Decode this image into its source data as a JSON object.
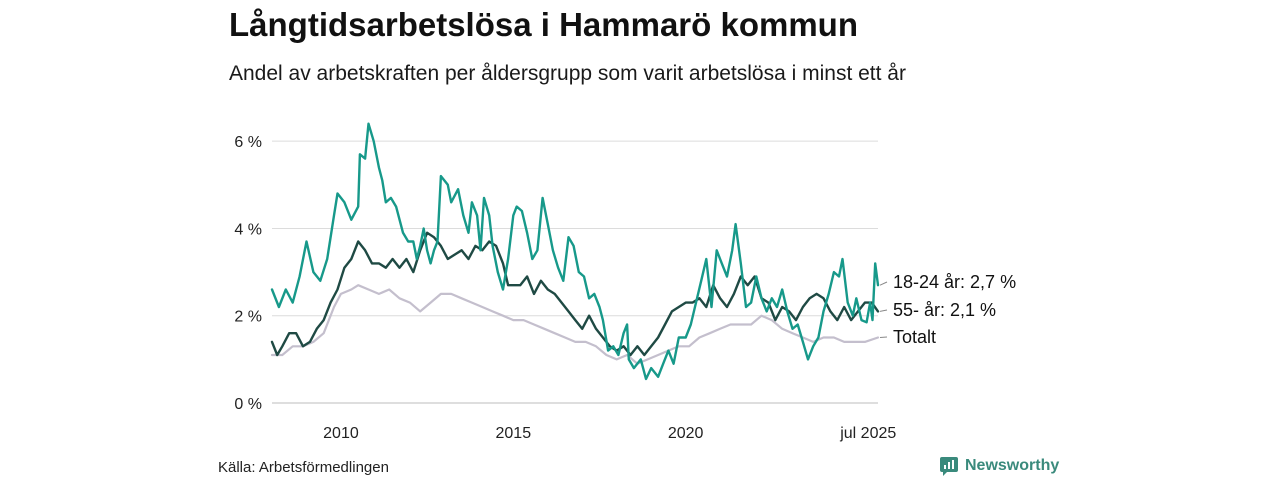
{
  "header": {
    "title": "Långtidsarbetslösa i Hammarö kommun",
    "subtitle": "Andel av arbetskraften per åldersgrupp som varit arbetslösa i minst ett år"
  },
  "footer": {
    "source": "Källa: Arbetsförmedlingen",
    "brand": "Newsworthy"
  },
  "colors": {
    "youth": "#17998a",
    "senior": "#1f4a44",
    "total": "#c4bfcd",
    "grid": "#dcdcdc"
  },
  "chart_data": {
    "type": "line",
    "title": "Långtidsarbetslösa i Hammarö kommun",
    "subtitle": "Andel av arbetskraften per åldersgrupp som varit arbetslösa i minst ett år",
    "xlim": [
      2008.0,
      2025.58
    ],
    "ylim": [
      0,
      6.6
    ],
    "y_ticks": [
      0,
      2,
      4,
      6
    ],
    "y_tick_labels": [
      "0 %",
      "2 %",
      "4 %",
      "6 %"
    ],
    "x_ticks": [
      2010,
      2015,
      2020,
      2025.5
    ],
    "x_tick_labels": [
      "2010",
      "2015",
      "2020",
      "jul 2025"
    ],
    "grid": "horizontal",
    "series": [
      {
        "key": "youth",
        "name": "18-24 år",
        "label": "18-24 år: 2,7 %",
        "points": [
          [
            2008.0,
            2.6
          ],
          [
            2008.2,
            2.2
          ],
          [
            2008.4,
            2.6
          ],
          [
            2008.6,
            2.3
          ],
          [
            2008.8,
            2.9
          ],
          [
            2009.0,
            3.7
          ],
          [
            2009.2,
            3.0
          ],
          [
            2009.4,
            2.8
          ],
          [
            2009.6,
            3.3
          ],
          [
            2009.8,
            4.3
          ],
          [
            2009.9,
            4.8
          ],
          [
            2010.1,
            4.6
          ],
          [
            2010.3,
            4.2
          ],
          [
            2010.5,
            4.5
          ],
          [
            2010.55,
            5.7
          ],
          [
            2010.7,
            5.6
          ],
          [
            2010.8,
            6.4
          ],
          [
            2010.95,
            6.0
          ],
          [
            2011.1,
            5.4
          ],
          [
            2011.2,
            5.1
          ],
          [
            2011.3,
            4.6
          ],
          [
            2011.45,
            4.7
          ],
          [
            2011.6,
            4.5
          ],
          [
            2011.8,
            3.9
          ],
          [
            2011.95,
            3.7
          ],
          [
            2012.1,
            3.7
          ],
          [
            2012.2,
            3.3
          ],
          [
            2012.3,
            3.6
          ],
          [
            2012.4,
            4.0
          ],
          [
            2012.5,
            3.5
          ],
          [
            2012.6,
            3.2
          ],
          [
            2012.7,
            3.5
          ],
          [
            2012.8,
            3.7
          ],
          [
            2012.9,
            5.2
          ],
          [
            2013.1,
            5.0
          ],
          [
            2013.2,
            4.6
          ],
          [
            2013.4,
            4.9
          ],
          [
            2013.55,
            4.3
          ],
          [
            2013.7,
            3.9
          ],
          [
            2013.8,
            4.6
          ],
          [
            2013.95,
            4.3
          ],
          [
            2014.05,
            3.5
          ],
          [
            2014.15,
            4.7
          ],
          [
            2014.3,
            4.3
          ],
          [
            2014.4,
            3.6
          ],
          [
            2014.55,
            3.0
          ],
          [
            2014.7,
            2.6
          ],
          [
            2014.85,
            3.3
          ],
          [
            2015.0,
            4.3
          ],
          [
            2015.1,
            4.5
          ],
          [
            2015.25,
            4.4
          ],
          [
            2015.4,
            3.9
          ],
          [
            2015.55,
            3.3
          ],
          [
            2015.7,
            3.5
          ],
          [
            2015.85,
            4.7
          ],
          [
            2016.0,
            4.1
          ],
          [
            2016.15,
            3.5
          ],
          [
            2016.3,
            3.1
          ],
          [
            2016.45,
            2.8
          ],
          [
            2016.6,
            3.8
          ],
          [
            2016.75,
            3.6
          ],
          [
            2016.9,
            3.0
          ],
          [
            2017.05,
            2.9
          ],
          [
            2017.2,
            2.4
          ],
          [
            2017.35,
            2.5
          ],
          [
            2017.5,
            2.2
          ],
          [
            2017.6,
            1.9
          ],
          [
            2017.75,
            1.2
          ],
          [
            2017.9,
            1.3
          ],
          [
            2018.05,
            1.1
          ],
          [
            2018.2,
            1.6
          ],
          [
            2018.3,
            1.8
          ],
          [
            2018.35,
            1.0
          ],
          [
            2018.5,
            0.8
          ],
          [
            2018.7,
            1.0
          ],
          [
            2018.85,
            0.55
          ],
          [
            2019.0,
            0.8
          ],
          [
            2019.2,
            0.6
          ],
          [
            2019.35,
            0.9
          ],
          [
            2019.5,
            1.2
          ],
          [
            2019.65,
            0.9
          ],
          [
            2019.8,
            1.5
          ],
          [
            2020.0,
            1.5
          ],
          [
            2020.15,
            1.8
          ],
          [
            2020.3,
            2.3
          ],
          [
            2020.45,
            2.8
          ],
          [
            2020.6,
            3.3
          ],
          [
            2020.75,
            2.2
          ],
          [
            2020.9,
            3.5
          ],
          [
            2021.05,
            3.2
          ],
          [
            2021.2,
            2.9
          ],
          [
            2021.35,
            3.5
          ],
          [
            2021.45,
            4.1
          ],
          [
            2021.6,
            3.2
          ],
          [
            2021.75,
            2.2
          ],
          [
            2021.9,
            2.3
          ],
          [
            2022.05,
            2.9
          ],
          [
            2022.2,
            2.4
          ],
          [
            2022.35,
            2.1
          ],
          [
            2022.5,
            2.4
          ],
          [
            2022.65,
            2.2
          ],
          [
            2022.8,
            2.6
          ],
          [
            2022.95,
            2.1
          ],
          [
            2023.1,
            1.7
          ],
          [
            2023.25,
            1.8
          ],
          [
            2023.4,
            1.4
          ],
          [
            2023.55,
            1.0
          ],
          [
            2023.7,
            1.3
          ],
          [
            2023.85,
            1.5
          ],
          [
            2024.0,
            2.1
          ],
          [
            2024.15,
            2.5
          ],
          [
            2024.3,
            3.0
          ],
          [
            2024.45,
            2.9
          ],
          [
            2024.55,
            3.3
          ],
          [
            2024.7,
            2.3
          ],
          [
            2024.85,
            2.0
          ],
          [
            2024.95,
            2.4
          ],
          [
            2025.1,
            1.9
          ],
          [
            2025.25,
            1.85
          ],
          [
            2025.35,
            2.3
          ],
          [
            2025.42,
            1.9
          ],
          [
            2025.5,
            3.2
          ],
          [
            2025.58,
            2.7
          ]
        ]
      },
      {
        "key": "senior",
        "name": "55- år",
        "label": "55- år: 2,1 %",
        "points": [
          [
            2008.0,
            1.4
          ],
          [
            2008.15,
            1.1
          ],
          [
            2008.3,
            1.3
          ],
          [
            2008.5,
            1.6
          ],
          [
            2008.7,
            1.6
          ],
          [
            2008.9,
            1.3
          ],
          [
            2009.1,
            1.4
          ],
          [
            2009.3,
            1.7
          ],
          [
            2009.5,
            1.9
          ],
          [
            2009.7,
            2.3
          ],
          [
            2009.9,
            2.6
          ],
          [
            2010.1,
            3.1
          ],
          [
            2010.3,
            3.3
          ],
          [
            2010.5,
            3.7
          ],
          [
            2010.7,
            3.5
          ],
          [
            2010.9,
            3.2
          ],
          [
            2011.1,
            3.2
          ],
          [
            2011.3,
            3.1
          ],
          [
            2011.5,
            3.3
          ],
          [
            2011.7,
            3.1
          ],
          [
            2011.9,
            3.3
          ],
          [
            2012.1,
            3.0
          ],
          [
            2012.3,
            3.5
          ],
          [
            2012.5,
            3.9
          ],
          [
            2012.7,
            3.8
          ],
          [
            2012.9,
            3.6
          ],
          [
            2013.1,
            3.3
          ],
          [
            2013.3,
            3.4
          ],
          [
            2013.5,
            3.5
          ],
          [
            2013.7,
            3.3
          ],
          [
            2013.9,
            3.6
          ],
          [
            2014.1,
            3.5
          ],
          [
            2014.3,
            3.7
          ],
          [
            2014.5,
            3.6
          ],
          [
            2014.7,
            3.2
          ],
          [
            2014.85,
            2.7
          ],
          [
            2015.0,
            2.7
          ],
          [
            2015.2,
            2.7
          ],
          [
            2015.4,
            2.9
          ],
          [
            2015.6,
            2.5
          ],
          [
            2015.8,
            2.8
          ],
          [
            2016.0,
            2.6
          ],
          [
            2016.2,
            2.5
          ],
          [
            2016.4,
            2.3
          ],
          [
            2016.6,
            2.1
          ],
          [
            2016.8,
            1.9
          ],
          [
            2017.0,
            1.7
          ],
          [
            2017.2,
            2.0
          ],
          [
            2017.4,
            1.7
          ],
          [
            2017.6,
            1.5
          ],
          [
            2017.8,
            1.3
          ],
          [
            2018.0,
            1.2
          ],
          [
            2018.2,
            1.3
          ],
          [
            2018.4,
            1.1
          ],
          [
            2018.6,
            1.3
          ],
          [
            2018.8,
            1.1
          ],
          [
            2019.0,
            1.3
          ],
          [
            2019.2,
            1.5
          ],
          [
            2019.4,
            1.8
          ],
          [
            2019.6,
            2.1
          ],
          [
            2019.8,
            2.2
          ],
          [
            2020.0,
            2.3
          ],
          [
            2020.2,
            2.3
          ],
          [
            2020.4,
            2.4
          ],
          [
            2020.6,
            2.2
          ],
          [
            2020.8,
            2.7
          ],
          [
            2021.0,
            2.4
          ],
          [
            2021.2,
            2.2
          ],
          [
            2021.4,
            2.5
          ],
          [
            2021.6,
            2.9
          ],
          [
            2021.8,
            2.7
          ],
          [
            2022.0,
            2.9
          ],
          [
            2022.2,
            2.4
          ],
          [
            2022.4,
            2.3
          ],
          [
            2022.6,
            1.9
          ],
          [
            2022.8,
            2.2
          ],
          [
            2023.0,
            2.1
          ],
          [
            2023.2,
            1.9
          ],
          [
            2023.4,
            2.2
          ],
          [
            2023.6,
            2.4
          ],
          [
            2023.8,
            2.5
          ],
          [
            2024.0,
            2.4
          ],
          [
            2024.2,
            2.1
          ],
          [
            2024.4,
            1.9
          ],
          [
            2024.6,
            2.2
          ],
          [
            2024.8,
            1.9
          ],
          [
            2025.0,
            2.1
          ],
          [
            2025.2,
            2.3
          ],
          [
            2025.4,
            2.3
          ],
          [
            2025.58,
            2.1
          ]
        ]
      },
      {
        "key": "total",
        "name": "Totalt",
        "label": "Totalt",
        "points": [
          [
            2008.0,
            1.1
          ],
          [
            2008.3,
            1.1
          ],
          [
            2008.6,
            1.3
          ],
          [
            2008.9,
            1.3
          ],
          [
            2009.2,
            1.4
          ],
          [
            2009.5,
            1.6
          ],
          [
            2009.8,
            2.2
          ],
          [
            2010.0,
            2.5
          ],
          [
            2010.3,
            2.6
          ],
          [
            2010.5,
            2.7
          ],
          [
            2010.8,
            2.6
          ],
          [
            2011.1,
            2.5
          ],
          [
            2011.4,
            2.6
          ],
          [
            2011.7,
            2.4
          ],
          [
            2012.0,
            2.3
          ],
          [
            2012.3,
            2.1
          ],
          [
            2012.6,
            2.3
          ],
          [
            2012.9,
            2.5
          ],
          [
            2013.2,
            2.5
          ],
          [
            2013.5,
            2.4
          ],
          [
            2013.8,
            2.3
          ],
          [
            2014.1,
            2.2
          ],
          [
            2014.4,
            2.1
          ],
          [
            2014.7,
            2.0
          ],
          [
            2015.0,
            1.9
          ],
          [
            2015.3,
            1.9
          ],
          [
            2015.6,
            1.8
          ],
          [
            2015.9,
            1.7
          ],
          [
            2016.2,
            1.6
          ],
          [
            2016.5,
            1.5
          ],
          [
            2016.8,
            1.4
          ],
          [
            2017.1,
            1.4
          ],
          [
            2017.4,
            1.3
          ],
          [
            2017.7,
            1.1
          ],
          [
            2018.0,
            1.0
          ],
          [
            2018.3,
            1.1
          ],
          [
            2018.6,
            0.9
          ],
          [
            2018.9,
            1.0
          ],
          [
            2019.2,
            1.1
          ],
          [
            2019.5,
            1.2
          ],
          [
            2019.8,
            1.3
          ],
          [
            2020.1,
            1.3
          ],
          [
            2020.4,
            1.5
          ],
          [
            2020.7,
            1.6
          ],
          [
            2021.0,
            1.7
          ],
          [
            2021.3,
            1.8
          ],
          [
            2021.6,
            1.8
          ],
          [
            2021.9,
            1.8
          ],
          [
            2022.2,
            2.0
          ],
          [
            2022.5,
            1.9
          ],
          [
            2022.8,
            1.7
          ],
          [
            2023.1,
            1.6
          ],
          [
            2023.4,
            1.5
          ],
          [
            2023.7,
            1.4
          ],
          [
            2024.0,
            1.5
          ],
          [
            2024.3,
            1.5
          ],
          [
            2024.6,
            1.4
          ],
          [
            2024.9,
            1.4
          ],
          [
            2025.2,
            1.4
          ],
          [
            2025.58,
            1.5
          ]
        ]
      }
    ]
  }
}
